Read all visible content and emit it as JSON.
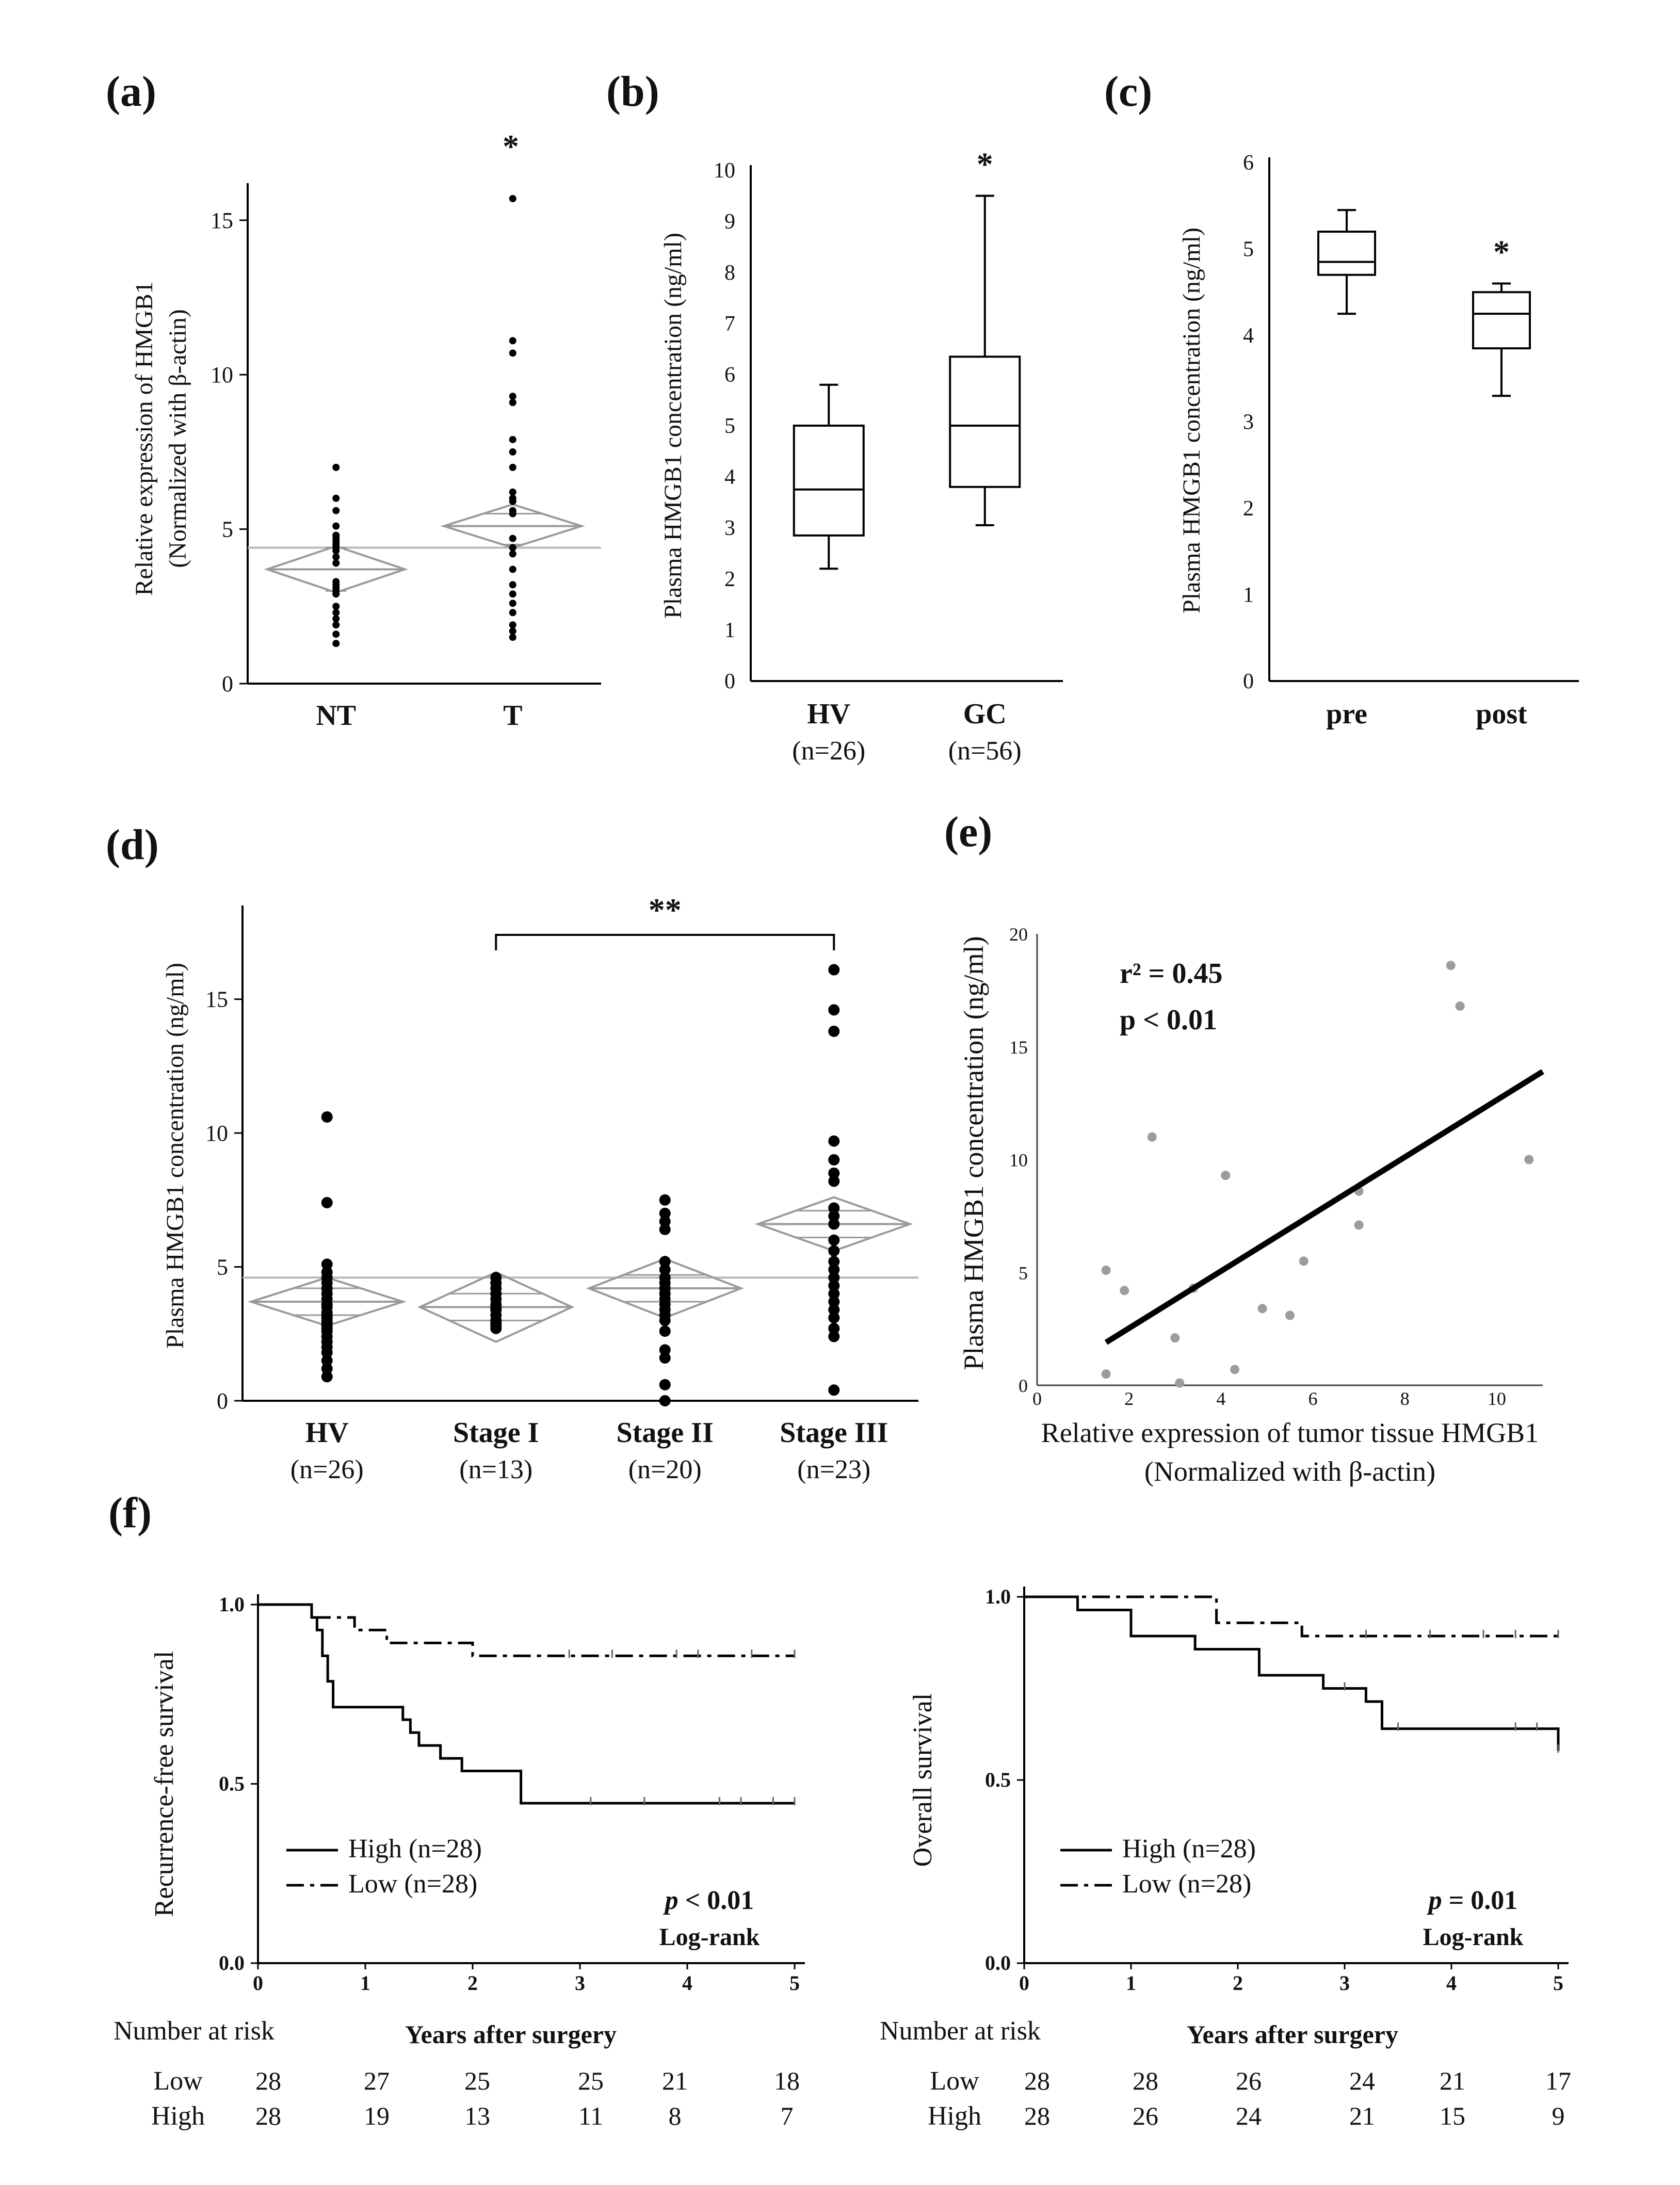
{
  "figure": {
    "panel_labels": [
      "(a)",
      "(b)",
      "(c)",
      "(d)",
      "(e)",
      "(f)"
    ]
  },
  "chart_data": [
    {
      "id": "a",
      "type": "scatter",
      "panel_label": "(a)",
      "ylabel_lines": [
        "Relative expression of HMGB1",
        "(Normalized with β-actin)"
      ],
      "yticks": [
        0,
        5,
        10,
        15
      ],
      "ylim": [
        0,
        16.2
      ],
      "categories": [
        "NT",
        "T"
      ],
      "significance": "*",
      "grand_mean": 4.4,
      "groups": [
        {
          "name": "NT",
          "mean": 3.7,
          "ci": [
            2.95,
            4.45
          ],
          "quartiles": [
            3.0,
            4.4
          ],
          "points": [
            7.0,
            6.0,
            5.6,
            5.1,
            4.8,
            4.7,
            4.6,
            4.5,
            4.4,
            4.3,
            4.1,
            3.9,
            3.3,
            3.2,
            3.1,
            3.0,
            2.9,
            2.5,
            2.3,
            2.1,
            1.9,
            1.6,
            1.3
          ]
        },
        {
          "name": "T",
          "mean": 5.1,
          "ci": [
            4.4,
            5.8
          ],
          "quartiles": [
            4.5,
            5.5
          ],
          "points": [
            15.7,
            11.1,
            10.7,
            9.3,
            9.1,
            7.9,
            7.5,
            7.0,
            6.2,
            6.0,
            5.9,
            5.6,
            5.5,
            4.7,
            4.4,
            4.2,
            3.7,
            3.2,
            2.9,
            2.6,
            2.3,
            1.9,
            1.7,
            1.5
          ]
        }
      ]
    },
    {
      "id": "b",
      "type": "box",
      "panel_label": "(b)",
      "ylabel": "Plasma HMGB1 concentration (ng/ml)",
      "yticks": [
        0,
        1,
        2,
        3,
        4,
        5,
        6,
        7,
        8,
        9,
        10
      ],
      "ylim": [
        0,
        10
      ],
      "significance": "*",
      "groups": [
        {
          "name": "HV",
          "n_label": "(n=26)",
          "min": 2.2,
          "q1": 2.85,
          "median": 3.75,
          "q3": 5.0,
          "max": 5.8
        },
        {
          "name": "GC",
          "n_label": "(n=56)",
          "min": 3.05,
          "q1": 3.8,
          "median": 5.0,
          "q3": 6.35,
          "max": 9.5
        }
      ]
    },
    {
      "id": "c",
      "type": "box",
      "panel_label": "(c)",
      "ylabel": "Plasma HMGB1 concentration (ng/ml)",
      "yticks": [
        0,
        1,
        2,
        3,
        4,
        5,
        6
      ],
      "ylim": [
        0,
        6
      ],
      "significance": "*",
      "groups": [
        {
          "name": "pre",
          "n_label": "",
          "min": 4.25,
          "q1": 4.7,
          "median": 4.85,
          "q3": 5.2,
          "max": 5.45
        },
        {
          "name": "post",
          "n_label": "",
          "min": 3.3,
          "q1": 3.85,
          "median": 4.25,
          "q3": 4.5,
          "max": 4.6
        }
      ]
    },
    {
      "id": "d",
      "type": "scatter",
      "panel_label": "(d)",
      "ylabel": "Plasma HMGB1 concentration (ng/ml)",
      "yticks": [
        0,
        5,
        10,
        15
      ],
      "ylim": [
        0,
        18.5
      ],
      "significance": "**",
      "grand_mean": 4.6,
      "groups": [
        {
          "name": "HV",
          "n_label": "(n=26)",
          "mean": 3.7,
          "ci": [
            2.8,
            4.6
          ],
          "quartiles": [
            3.2,
            4.2
          ],
          "points": [
            10.6,
            7.4,
            5.1,
            4.8,
            4.6,
            4.4,
            4.2,
            4.0,
            3.8,
            3.6,
            3.5,
            3.3,
            3.2,
            3.1,
            3.0,
            2.9,
            2.8,
            2.7,
            2.6,
            2.4,
            2.2,
            2.0,
            1.8,
            1.5,
            1.2,
            0.9
          ]
        },
        {
          "name": "Stage I",
          "n_label": "(n=13)",
          "mean": 3.5,
          "ci": [
            2.2,
            4.8
          ],
          "quartiles": [
            3.0,
            4.0
          ],
          "points": [
            4.6,
            4.4,
            4.2,
            4.0,
            3.8,
            3.6,
            3.5,
            3.4,
            3.2,
            3.0,
            2.9,
            2.8,
            2.7
          ]
        },
        {
          "name": "Stage II",
          "n_label": "(n=20)",
          "mean": 4.2,
          "ci": [
            3.1,
            5.3
          ],
          "quartiles": [
            3.7,
            4.7
          ],
          "points": [
            7.5,
            7.0,
            6.7,
            6.4,
            5.2,
            4.9,
            4.6,
            4.4,
            4.2,
            4.0,
            3.8,
            3.6,
            3.4,
            3.2,
            3.0,
            2.6,
            1.9,
            1.6,
            0.6,
            0.0
          ]
        },
        {
          "name": "Stage III",
          "n_label": "(n=23)",
          "mean": 6.6,
          "ci": [
            5.6,
            7.6
          ],
          "quartiles": [
            6.1,
            7.1
          ],
          "points": [
            16.1,
            14.6,
            13.8,
            9.7,
            9.0,
            8.5,
            8.2,
            7.2,
            6.9,
            6.6,
            6.0,
            5.6,
            5.2,
            4.9,
            4.6,
            4.3,
            4.0,
            3.7,
            3.4,
            3.1,
            2.7,
            2.4,
            0.4
          ]
        }
      ],
      "bracket": {
        "from": "Stage I",
        "to": "Stage III"
      }
    },
    {
      "id": "e",
      "type": "scatter",
      "panel_label": "(e)",
      "ylabel": "Plasma HMGB1 concentration (ng/ml)",
      "xlabel_lines": [
        "Relative expression of tumor tissue HMGB1",
        "(Normalized with β-actin)"
      ],
      "xticks": [
        0,
        2,
        4,
        6,
        8,
        10
      ],
      "yticks": [
        0,
        5,
        10,
        15,
        20
      ],
      "xlim": [
        0,
        11
      ],
      "ylim": [
        0,
        20
      ],
      "annotation_r2": "r² = 0.45",
      "annotation_p": "p < 0.01",
      "fit_line": {
        "x": [
          1.5,
          11.0
        ],
        "y": [
          1.9,
          13.9
        ]
      },
      "points": [
        {
          "x": 1.5,
          "y": 5.1
        },
        {
          "x": 1.5,
          "y": 0.5
        },
        {
          "x": 1.9,
          "y": 4.2
        },
        {
          "x": 2.5,
          "y": 11.0
        },
        {
          "x": 3.0,
          "y": 2.1
        },
        {
          "x": 3.1,
          "y": 0.1
        },
        {
          "x": 3.4,
          "y": 4.3
        },
        {
          "x": 4.1,
          "y": 9.3
        },
        {
          "x": 4.3,
          "y": 0.7
        },
        {
          "x": 4.9,
          "y": 3.4
        },
        {
          "x": 5.5,
          "y": 3.1
        },
        {
          "x": 5.8,
          "y": 5.5
        },
        {
          "x": 7.0,
          "y": 8.6
        },
        {
          "x": 7.0,
          "y": 7.1
        },
        {
          "x": 9.0,
          "y": 18.6
        },
        {
          "x": 9.2,
          "y": 16.8
        },
        {
          "x": 10.7,
          "y": 10.0
        }
      ]
    },
    {
      "id": "f1",
      "type": "line",
      "panel_label": "(f)",
      "ylabel": "Recurrence-free survival",
      "xlabel": "Years after surgery",
      "xticks": [
        0,
        1,
        2,
        3,
        4,
        5
      ],
      "yticks": [
        "0.0",
        "0.5",
        "1.0"
      ],
      "xlim": [
        0,
        5
      ],
      "ylim": [
        0,
        1
      ],
      "series": [
        {
          "name": "High (n=28)",
          "style": "solid",
          "x": [
            0,
            0.5,
            0.55,
            0.6,
            0.65,
            0.7,
            1.35,
            1.42,
            1.5,
            1.7,
            1.9,
            2.45,
            5.0
          ],
          "y": [
            1.0,
            0.964,
            0.929,
            0.857,
            0.786,
            0.714,
            0.679,
            0.643,
            0.607,
            0.571,
            0.536,
            0.446,
            0.446
          ]
        },
        {
          "name": "Low (n=28)",
          "style": "dashdot",
          "x": [
            0,
            0.5,
            0.9,
            1.2,
            2.0,
            5.0
          ],
          "y": [
            1.0,
            0.964,
            0.929,
            0.893,
            0.857,
            0.857
          ]
        }
      ],
      "censor_marks": {
        "High (n=28)": [
          3.1,
          3.6,
          4.3,
          4.5,
          4.8,
          5.0
        ],
        "Low (n=28)": [
          2.9,
          3.3,
          3.9,
          4.1,
          4.6,
          5.0
        ]
      },
      "pvalue_label": "p",
      "pvalue_text": " < 0.01",
      "test_label": "Log-rank",
      "risk_table": {
        "title": "Number at risk",
        "rows": [
          {
            "label": "Low",
            "values": [
              "28",
              "27",
              "25",
              "25",
              "21",
              "18"
            ]
          },
          {
            "label": "High",
            "values": [
              "28",
              "19",
              "13",
              "11",
              "8",
              "7"
            ]
          }
        ]
      }
    },
    {
      "id": "f2",
      "type": "line",
      "ylabel": "Overall survival",
      "xlabel": "Years after surgery",
      "xticks": [
        0,
        1,
        2,
        3,
        4,
        5
      ],
      "yticks": [
        "0.0",
        "0.5",
        "1.0"
      ],
      "xlim": [
        0,
        5
      ],
      "ylim": [
        0,
        1
      ],
      "series": [
        {
          "name": "High (n=28)",
          "style": "solid",
          "x": [
            0,
            0.5,
            1.0,
            1.6,
            2.2,
            2.8,
            3.2,
            3.35,
            5.0
          ],
          "y": [
            1.0,
            0.964,
            0.893,
            0.857,
            0.786,
            0.75,
            0.714,
            0.64,
            0.58
          ]
        },
        {
          "name": "Low (n=28)",
          "style": "dashdot",
          "x": [
            0,
            1.8,
            2.6,
            5.0
          ],
          "y": [
            1.0,
            0.929,
            0.893,
            0.893
          ]
        }
      ],
      "censor_marks": {
        "High (n=28)": [
          3.0,
          3.5,
          4.6,
          4.8,
          5.0
        ],
        "Low (n=28)": [
          3.2,
          3.8,
          4.3,
          4.6,
          5.0
        ]
      },
      "pvalue_label": "p",
      "pvalue_text": " = 0.01",
      "test_label": "Log-rank",
      "risk_table": {
        "title": "Number at risk",
        "rows": [
          {
            "label": "Low",
            "values": [
              "28",
              "28",
              "26",
              "24",
              "21",
              "17"
            ]
          },
          {
            "label": "High",
            "values": [
              "28",
              "26",
              "24",
              "21",
              "15",
              "9"
            ]
          }
        ]
      }
    }
  ]
}
